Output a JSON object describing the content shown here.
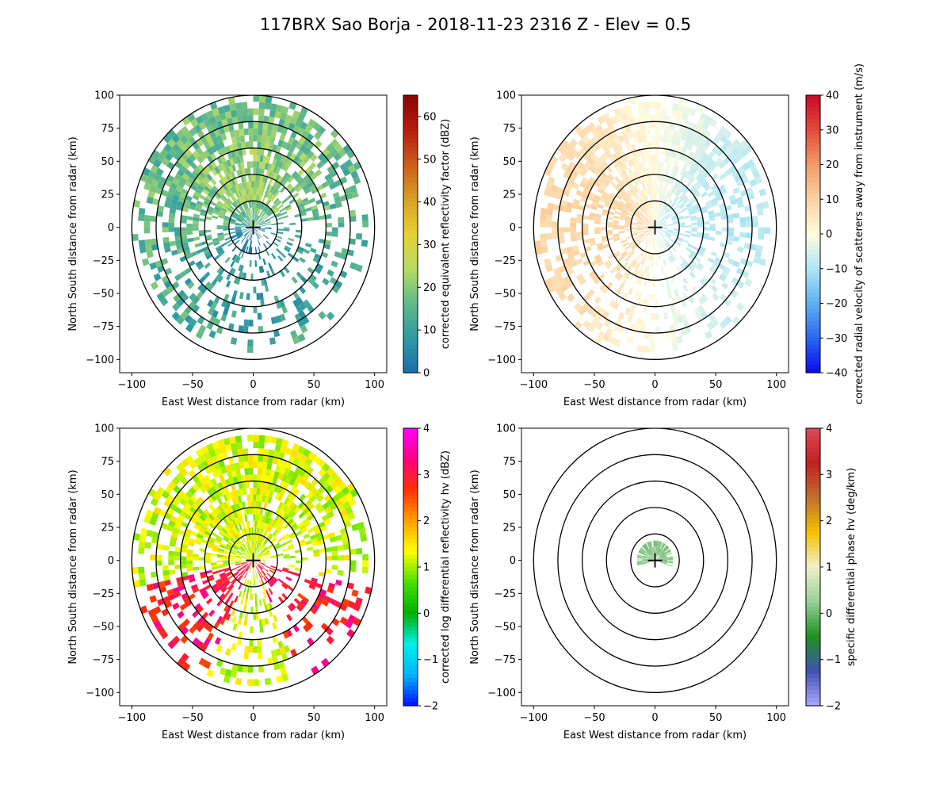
{
  "figure": {
    "title": "117BRX Sao Borja - 2018-11-23 2316 Z -  Elev = 0.5"
  },
  "chart_data": [
    {
      "type": "heatmap",
      "name": "reflectivity",
      "xlabel": "East West distance from radar (km)",
      "ylabel": "North South distance from radar (km)",
      "xlim": [
        -110,
        110
      ],
      "ylim": [
        -110,
        100
      ],
      "xticks": [
        -100,
        -50,
        0,
        50,
        100
      ],
      "yticks": [
        -100,
        -75,
        -50,
        -25,
        0,
        25,
        50,
        75,
        100
      ],
      "range_rings_km": [
        20,
        40,
        60,
        80,
        100
      ],
      "colorbar": {
        "label": "corrected equivalent reflectivity factor (dBZ)",
        "ticks": [
          0,
          10,
          20,
          30,
          40,
          50,
          60
        ],
        "range": [
          0,
          65
        ],
        "colors": [
          "#1a6ea8",
          "#2f9aa3",
          "#62b98a",
          "#b7dc62",
          "#e6d135",
          "#d9a024",
          "#cc5e18",
          "#b51d10",
          "#8a0505"
        ]
      },
      "echo_coverage": "widespread 0-25 dBZ echo concentrated north and west of the radar"
    },
    {
      "type": "heatmap",
      "name": "velocity",
      "xlabel": "East West distance from radar (km)",
      "ylabel": "North South distance from radar (km)",
      "xlim": [
        -110,
        110
      ],
      "ylim": [
        -110,
        100
      ],
      "xticks": [
        -100,
        -50,
        0,
        50,
        100
      ],
      "yticks": [
        -100,
        -75,
        -50,
        -25,
        0,
        25,
        50,
        75,
        100
      ],
      "range_rings_km": [
        20,
        40,
        60,
        80,
        100
      ],
      "colorbar": {
        "label": "corrected radial velocity of scatterers away from instrument (m/s)",
        "ticks": [
          -40,
          -30,
          -20,
          -10,
          0,
          10,
          20,
          30,
          40
        ],
        "range": [
          -40,
          40
        ],
        "colors": [
          "#0a0af0",
          "#2a68f0",
          "#5fb0f0",
          "#aee6f5",
          "#fffbe0",
          "#fbd2a0",
          "#f39a68",
          "#e34a3c",
          "#c80a28"
        ]
      },
      "echo_coverage": "light orange (+8 m/s) west of radar, light blue (-8 m/s) east of radar"
    },
    {
      "type": "heatmap",
      "name": "differential_reflectivity",
      "xlabel": "East West distance from radar (km)",
      "ylabel": "North South distance from radar (km)",
      "xlim": [
        -110,
        110
      ],
      "ylim": [
        -110,
        100
      ],
      "xticks": [
        -100,
        -50,
        0,
        50,
        100
      ],
      "yticks": [
        -100,
        -75,
        -50,
        -25,
        0,
        25,
        50,
        75,
        100
      ],
      "range_rings_km": [
        20,
        40,
        60,
        80,
        100
      ],
      "colorbar": {
        "label": "corrected log differential reflectivity hv (dBZ)",
        "ticks": [
          -2,
          -1,
          0,
          1,
          2,
          3,
          4
        ],
        "range": [
          -2,
          4
        ],
        "colors": [
          "#0010ff",
          "#00b4ff",
          "#00f0e8",
          "#00b000",
          "#48e000",
          "#ffff00",
          "#ffa000",
          "#ff3000",
          "#ff0080",
          "#ff00ff"
        ]
      },
      "echo_coverage": "mostly 0.5-2 dB; 3-4 dB streaks to the south-east and south-west"
    },
    {
      "type": "heatmap",
      "name": "specific_differential_phase",
      "xlabel": "East West distance from radar (km)",
      "ylabel": "North South distance from radar (km)",
      "xlim": [
        -110,
        110
      ],
      "ylim": [
        -110,
        100
      ],
      "xticks": [
        -100,
        -50,
        0,
        50,
        100
      ],
      "yticks": [
        -100,
        -75,
        -50,
        -25,
        0,
        25,
        50,
        75,
        100
      ],
      "range_rings_km": [
        20,
        40,
        60,
        80,
        100
      ],
      "colorbar": {
        "label": "specific differential phase hv (deg/km)",
        "ticks": [
          -2,
          -1,
          0,
          1,
          2,
          3,
          4
        ],
        "range": [
          -2,
          4
        ],
        "colors": [
          "#a8a8ff",
          "#4050b0",
          "#209020",
          "#98d098",
          "#f0f0c8",
          "#f5c000",
          "#c07030",
          "#c02020",
          "#e04858"
        ]
      },
      "echo_coverage": "small patch near the radar within about 15 km, values near 0 deg/km"
    }
  ]
}
